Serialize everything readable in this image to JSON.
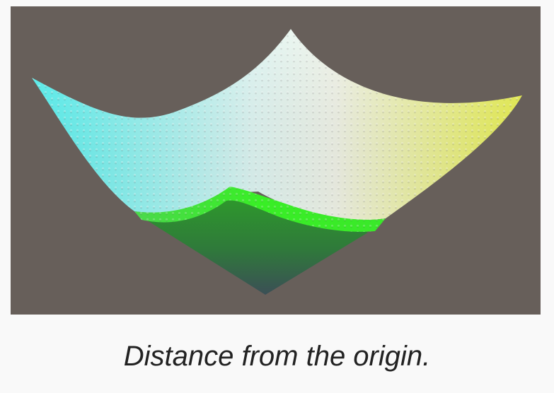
{
  "figure": {
    "caption": "Distance from the origin.",
    "background_color": "#675f5a",
    "page_color": "#f9f9f9",
    "colors": {
      "cyan": "#4ff2f0",
      "white": "#f2f5f1",
      "yellow": "#e6f24a",
      "green": "#35e52a",
      "dark_green": "#2d6b3a"
    }
  }
}
